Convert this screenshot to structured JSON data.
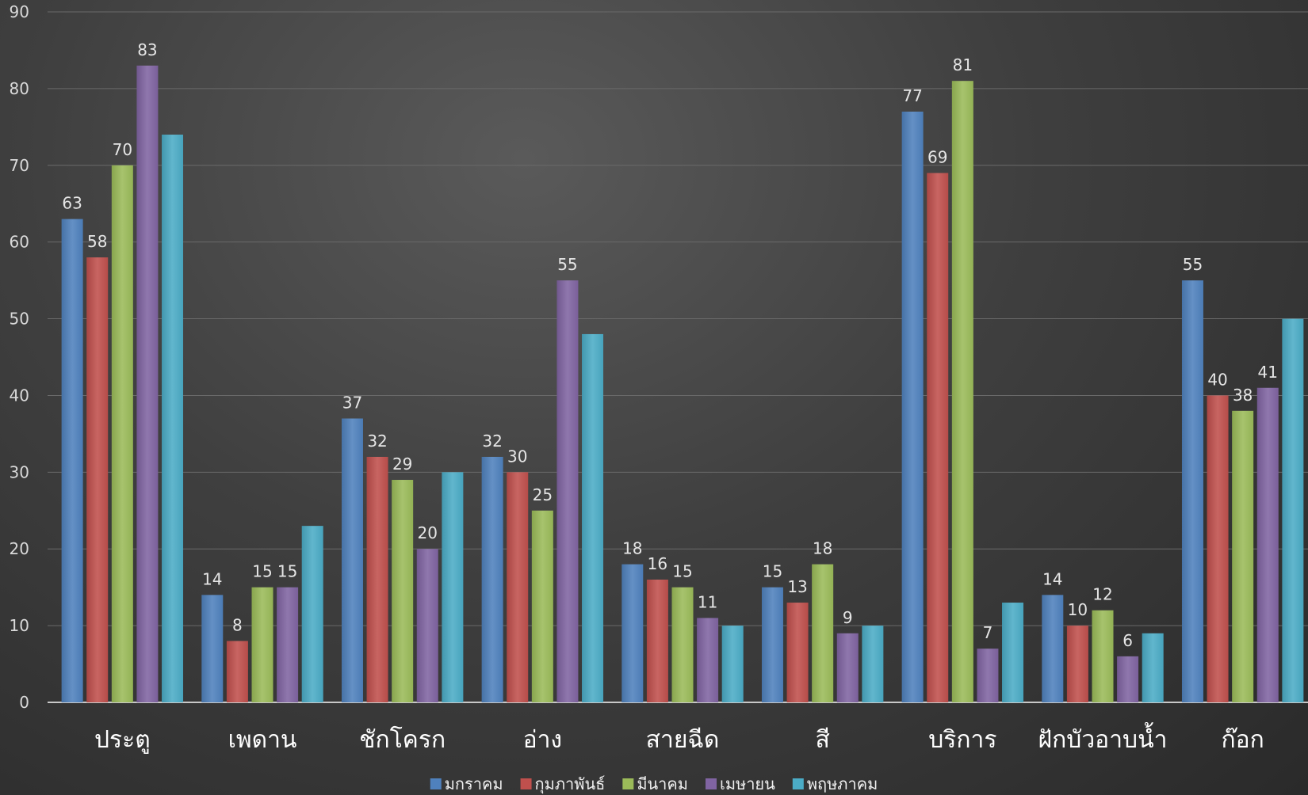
{
  "chart_data": {
    "type": "bar",
    "title": "",
    "xlabel": "",
    "ylabel": "",
    "ylim": [
      0,
      90
    ],
    "yticks": [
      "0",
      "10",
      "20",
      "30",
      "40",
      "50",
      "60",
      "70",
      "80",
      "90"
    ],
    "grid": true,
    "legend_position": "bottom",
    "categories": [
      "ประตู",
      "เพดาน",
      "ชักโครก",
      "อ่าง",
      "สายฉีด",
      "สี",
      "บริการ",
      "ฝักบัวอาบน้ำ",
      "ก๊อก"
    ],
    "series": [
      {
        "name": "มกราคม",
        "color": "#4f81bd",
        "values": [
          63,
          14,
          37,
          32,
          18,
          15,
          77,
          14,
          55
        ]
      },
      {
        "name": "กุมภาพันธ์",
        "color": "#c0504d",
        "values": [
          58,
          8,
          32,
          30,
          16,
          13,
          69,
          10,
          40
        ]
      },
      {
        "name": "มีนาคม",
        "color": "#9bbb59",
        "values": [
          70,
          15,
          29,
          25,
          15,
          18,
          81,
          12,
          38
        ]
      },
      {
        "name": "เมษายน",
        "color": "#8064a2",
        "values": [
          83,
          15,
          20,
          55,
          11,
          9,
          7,
          6,
          41
        ]
      },
      {
        "name": "พฤษภาคม",
        "color": "#4bacc6",
        "values": [
          74,
          23,
          30,
          48,
          10,
          10,
          13,
          9,
          50
        ]
      }
    ],
    "labeled_series": [
      "มกราคม",
      "กุมภาพันธ์",
      "มีนาคม",
      "เมษายน"
    ]
  }
}
